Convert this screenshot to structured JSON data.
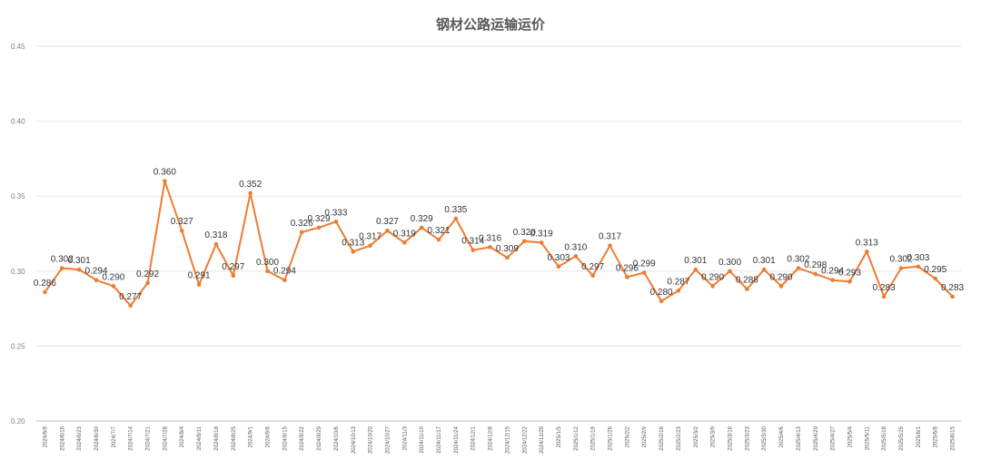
{
  "chart_data": {
    "type": "line",
    "title": "钢材公路运输运价",
    "xlabel": "",
    "ylabel": "",
    "ylim": [
      0.2,
      0.45
    ],
    "y_ticks": [
      "0.20",
      "0.25",
      "0.30",
      "0.35",
      "0.40",
      "0.45"
    ],
    "grid": true,
    "line_color": "#ED7D31",
    "categories": [
      "2024/6/9",
      "2024/6/16",
      "2024/6/23",
      "2024/6/30",
      "2024/7/7",
      "2024/7/14",
      "2024/7/21",
      "2024/7/28",
      "2024/8/4",
      "2024/8/11",
      "2024/8/18",
      "2024/8/25",
      "2024/9/1",
      "2024/9/8",
      "2024/9/15",
      "2024/9/22",
      "2024/9/29",
      "2024/10/6",
      "2024/10/13",
      "2024/10/20",
      "2024/10/27",
      "2024/11/3",
      "2024/11/10",
      "2024/11/17",
      "2024/11/24",
      "2024/12/1",
      "2024/12/8",
      "2024/12/15",
      "2024/12/22",
      "2024/12/29",
      "2025/1/5",
      "2025/1/12",
      "2025/1/19",
      "2025/1/26",
      "2025/2/2",
      "2025/2/9",
      "2025/2/16",
      "2025/2/23",
      "2025/3/2",
      "2025/3/9",
      "2025/3/16",
      "2025/3/23",
      "2025/3/30",
      "2025/4/6",
      "2025/4/13",
      "2025/4/20",
      "2025/4/27",
      "2025/5/4",
      "2025/5/11",
      "2025/5/18",
      "2025/5/25",
      "2025/6/1",
      "2025/6/8",
      "2025/6/15"
    ],
    "values": [
      0.286,
      0.302,
      0.301,
      0.294,
      0.29,
      0.277,
      0.292,
      0.36,
      0.327,
      0.291,
      0.318,
      0.297,
      0.352,
      0.3,
      0.294,
      0.326,
      0.329,
      0.333,
      0.313,
      0.317,
      0.327,
      0.319,
      0.329,
      0.321,
      0.335,
      0.314,
      0.316,
      0.309,
      0.32,
      0.319,
      0.303,
      0.31,
      0.297,
      0.317,
      0.296,
      0.299,
      0.28,
      0.287,
      0.301,
      0.29,
      0.3,
      0.288,
      0.301,
      0.29,
      0.302,
      0.298,
      0.294,
      0.293,
      0.313,
      0.283,
      0.302,
      0.303,
      0.295,
      0.283
    ],
    "labels": [
      "0.286",
      "0.302",
      "0.301",
      "0.294",
      "0.290",
      "0.277",
      "0.292",
      "0.360",
      "0.327",
      "0.291",
      "0.318",
      "0.297",
      "0.352",
      "0.300",
      "0.294",
      "0.326",
      "0.329",
      "0.333",
      "0.313",
      "0.317",
      "0.327",
      "0.319",
      "0.329",
      "0.321",
      "0.335",
      "0.314",
      "0.316",
      "0.309",
      "0.320",
      "0.319",
      "0.303",
      "0.310",
      "0.297",
      "0.317",
      "0.296",
      "0.299",
      "0.280",
      "0.287",
      "0.301",
      "0.290",
      "0.300",
      "0.288",
      "0.301",
      "0.290",
      "0.302",
      "0.298",
      "0.294",
      "0.293",
      "0.313",
      "0.283",
      "0.302",
      "0.303",
      "0.295",
      "0.283"
    ]
  }
}
